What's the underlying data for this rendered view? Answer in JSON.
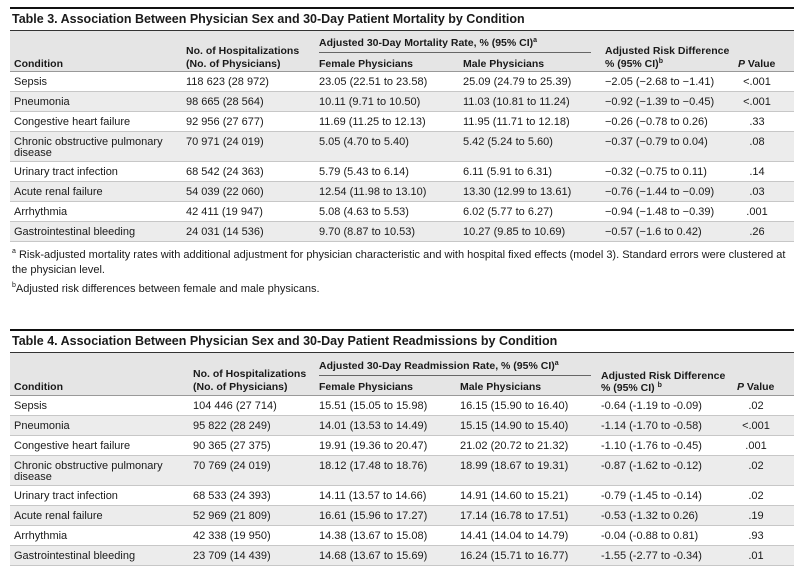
{
  "table3": {
    "title": "Table 3. Association Between Physician Sex and 30-Day Patient Mortality by Condition",
    "headers": {
      "condition": "Condition",
      "hosp_line1": "No. of Hospitalizations",
      "hosp_line2": "(No. of Physicians)",
      "rate_group": "Adjusted 30-Day Mortality Rate, % (95% CI)",
      "rate_group_sup": "a",
      "female": "Female Physicians",
      "male": "Male Physicians",
      "diff_line1": "Adjusted Risk Difference",
      "diff_line2": "% (95% CI)",
      "diff_sup": "b",
      "pvalue": "P Value"
    },
    "rows": [
      {
        "condition": "Sepsis",
        "hosp": "118 623 (28 972)",
        "female": "23.05 (22.51 to 23.58)",
        "male": "25.09 (24.79 to 25.39)",
        "diff": "−2.05 (−2.68 to −1.41)",
        "p": "<.001"
      },
      {
        "condition": "Pneumonia",
        "hosp": "98 665 (28 564)",
        "female": "10.11 (9.71 to 10.50)",
        "male": "11.03 (10.81 to 11.24)",
        "diff": "−0.92 (−1.39 to −0.45)",
        "p": "<.001"
      },
      {
        "condition": "Congestive heart failure",
        "hosp": "92 956 (27 677)",
        "female": "11.69 (11.25 to 12.13)",
        "male": "11.95 (11.71 to 12.18)",
        "diff": "−0.26 (−0.78 to 0.26)",
        "p": ".33"
      },
      {
        "condition": "Chronic obstructive pulmonary",
        "condition2": "disease",
        "hosp": "70 971 (24 019)",
        "female": "5.05 (4.70 to 5.40)",
        "male": "5.42 (5.24 to 5.60)",
        "diff": "−0.37 (−0.79 to 0.04)",
        "p": ".08"
      },
      {
        "condition": "Urinary tract infection",
        "hosp": "68 542 (24 363)",
        "female": "5.79 (5.43 to 6.14)",
        "male": "6.11 (5.91 to 6.31)",
        "diff": "−0.32 (−0.75 to 0.11)",
        "p": ".14"
      },
      {
        "condition": "Acute renal failure",
        "hosp": "54 039 (22 060)",
        "female": "12.54 (11.98 to 13.10)",
        "male": "13.30 (12.99 to 13.61)",
        "diff": "−0.76 (−1.44 to −0.09)",
        "p": ".03"
      },
      {
        "condition": "Arrhythmia",
        "hosp": "42 411 (19 947)",
        "female": "5.08 (4.63 to 5.53)",
        "male": "6.02 (5.77 to 6.27)",
        "diff": "−0.94 (−1.48 to −0.39)",
        "p": ".001"
      },
      {
        "condition": "Gastrointestinal bleeding",
        "hosp": "24 031 (14 536)",
        "female": "9.70 (8.87 to 10.53)",
        "male": "10.27 (9.85 to 10.69)",
        "diff": "−0.57 (−1.6 to 0.42)",
        "p": ".26"
      }
    ],
    "footnote_a_mark": "a",
    "footnote_a": "Risk-adjusted mortality rates with additional adjustment for physician characteristic and with hospital fixed effects (model 3). Standard errors were clustered at the physician level.",
    "footnote_b_mark": "b",
    "footnote_b": "Adjusted risk differences between female and male physicans."
  },
  "table4": {
    "title": "Table 4. Association Between Physician Sex and 30-Day Patient Readmissions by Condition",
    "headers": {
      "condition": "Condition",
      "hosp_line1": "No. of Hospitalizations",
      "hosp_line2": "(No. of Physicians)",
      "rate_group": "Adjusted 30-Day Readmission Rate, % (95% CI)",
      "rate_group_sup": "a",
      "female": "Female Physicians",
      "male": "Male Physicians",
      "diff_line1": "Adjusted Risk Difference",
      "diff_line2": "% (95% CI)",
      "diff_sup": "b",
      "pvalue": "P Value"
    },
    "rows": [
      {
        "condition": "Sepsis",
        "hosp": "104 446 (27 714)",
        "female": "15.51 (15.05 to 15.98)",
        "male": "16.15 (15.90 to 16.40)",
        "diff": "-0.64 (-1.19 to -0.09)",
        "p": ".02"
      },
      {
        "condition": "Pneumonia",
        "hosp": "95 822 (28 249)",
        "female": "14.01 (13.53 to 14.49)",
        "male": "15.15 (14.90 to 15.40)",
        "diff": "-1.14 (-1.70 to -0.58)",
        "p": "<.001"
      },
      {
        "condition": "Congestive heart failure",
        "hosp": "90 365 (27 375)",
        "female": "19.91 (19.36 to 20.47)",
        "male": "21.02 (20.72 to 21.32)",
        "diff": "-1.10 (-1.76 to -0.45)",
        "p": ".001"
      },
      {
        "condition": "Chronic obstructive pulmonary",
        "condition2": "disease",
        "hosp": "70 769 (24 019)",
        "female": "18.12 (17.48 to 18.76)",
        "male": "18.99 (18.67 to 19.31)",
        "diff": "-0.87 (-1.62 to -0.12)",
        "p": ".02"
      },
      {
        "condition": "Urinary tract infection",
        "hosp": "68 533 (24 393)",
        "female": "14.11 (13.57 to 14.66)",
        "male": "14.91 (14.60 to 15.21)",
        "diff": "-0.79 (-1.45 to -0.14)",
        "p": ".02"
      },
      {
        "condition": "Acute renal failure",
        "hosp": "52 969 (21 809)",
        "female": "16.61 (15.96 to 17.27)",
        "male": "17.14 (16.78 to 17.51)",
        "diff": "-0.53 (-1.32 to 0.26)",
        "p": ".19"
      },
      {
        "condition": "Arrhythmia",
        "hosp": "42 338 (19 950)",
        "female": "14.38 (13.67 to 15.08)",
        "male": "14.41 (14.04 to 14.79)",
        "diff": "-0.04 (-0.88 to 0.81)",
        "p": ".93"
      },
      {
        "condition": "Gastrointestinal bleeding",
        "hosp": "23 709 (14 439)",
        "female": "14.68 (13.67 to 15.69)",
        "male": "16.24 (15.71 to 16.77)",
        "diff": "-1.55 (-2.77 to -0.34)",
        "p": ".01"
      }
    ]
  }
}
